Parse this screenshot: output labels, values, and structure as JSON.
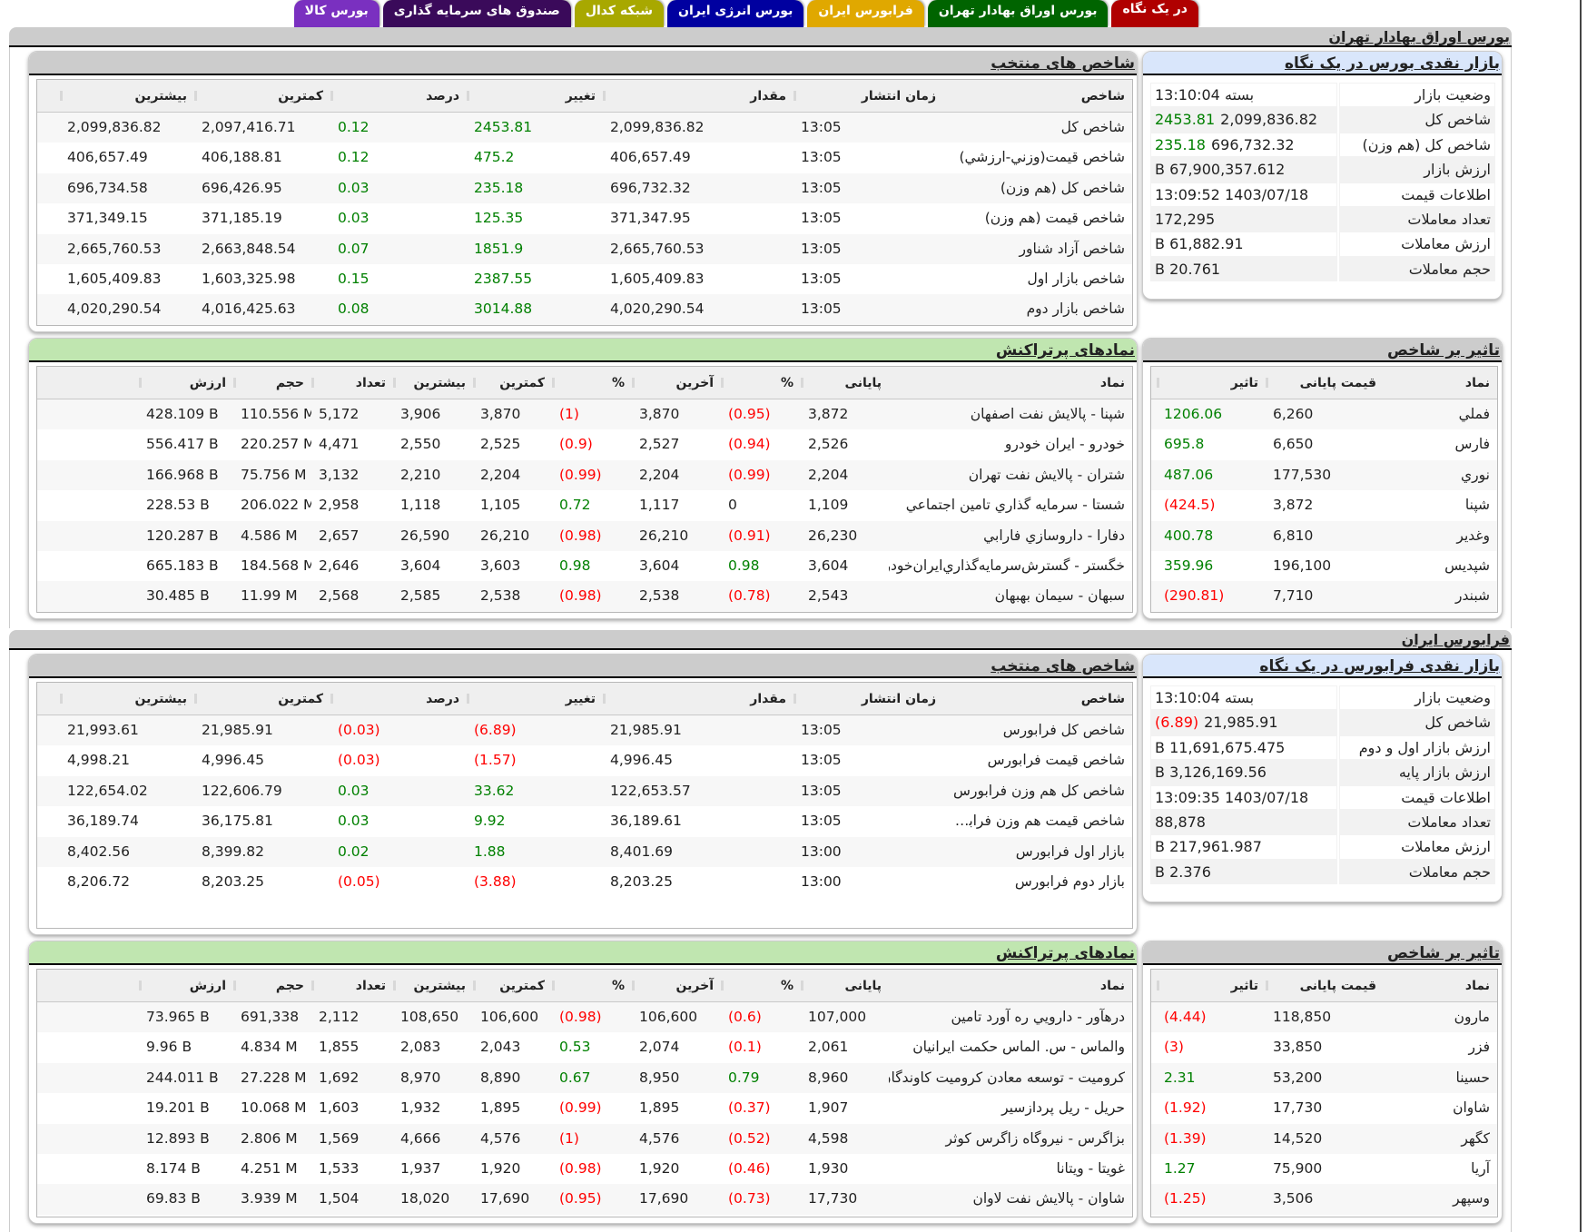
{
  "tabs": [
    {
      "label": "در یک نگاه",
      "color": "#b00000",
      "active": true
    },
    {
      "label": "بورس اوراق بهادار تهران",
      "color": "#006400"
    },
    {
      "label": "فرابورس ایران",
      "color": "#e0a800"
    },
    {
      "label": "بورس انرژی ایران",
      "color": "#0000a0"
    },
    {
      "label": "شبکه کدال",
      "color": "#a8a800"
    },
    {
      "label": "صندوق های سرمایه گذاری",
      "color": "#3a0a5a"
    },
    {
      "label": "بورس کالا",
      "color": "#7a30c0"
    }
  ],
  "colors": {
    "positive": "#008000",
    "negative": "#ff0000",
    "summary_header": "#d9e6fb",
    "active_header": "#c0e6b0",
    "section_bar": "#cccccc"
  },
  "tse": {
    "title": "بورس اوراق بهادار تهران",
    "summary": {
      "title": "بازار نقدی بورس در یک نگاه",
      "rows": [
        {
          "label": "وضعیت بازار",
          "value": "بسته 13:10:04",
          "change": ""
        },
        {
          "label": "شاخص کل",
          "value": "2,099,836.82",
          "change": "2453.81",
          "dir": "pos"
        },
        {
          "label": "شاخص کل (هم وزن)",
          "value": "696,732.32",
          "change": "235.18",
          "dir": "pos"
        },
        {
          "label": "ارزش بازار",
          "value": "67,900,357.612 B",
          "change": ""
        },
        {
          "label": "اطلاعات قیمت",
          "value": "1403/07/18 13:09:52",
          "change": ""
        },
        {
          "label": "تعداد معاملات",
          "value": "172,295",
          "change": ""
        },
        {
          "label": "ارزش معاملات",
          "value": "61,882.91 B",
          "change": ""
        },
        {
          "label": "حجم معاملات",
          "value": "20.761 B",
          "change": ""
        }
      ]
    },
    "indices": {
      "title": "شاخص های منتخب",
      "columns": [
        "شاخص",
        "زمان انتشار",
        "مقدار",
        "تغییر",
        "درصد",
        "کمترین",
        "بیشترین"
      ],
      "rows": [
        [
          "شاخص کل",
          "13:05",
          "2,099,836.82",
          "2453.81",
          "0.12",
          "2,097,416.71",
          "2,099,836.82",
          "pos"
        ],
        [
          "شاخص قيمت(وزني-ارزشي)",
          "13:05",
          "406,657.49",
          "475.2",
          "0.12",
          "406,188.81",
          "406,657.49",
          "pos"
        ],
        [
          "شاخص کل (هم وزن)",
          "13:05",
          "696,732.32",
          "235.18",
          "0.03",
          "696,426.95",
          "696,734.58",
          "pos"
        ],
        [
          "شاخص قیمت (هم وزن)",
          "13:05",
          "371,347.95",
          "125.35",
          "0.03",
          "371,185.19",
          "371,349.15",
          "pos"
        ],
        [
          "شاخص آزاد شناور",
          "13:05",
          "2,665,760.53",
          "1851.9",
          "0.07",
          "2,663,848.54",
          "2,665,760.53",
          "pos"
        ],
        [
          "شاخص بازار اول",
          "13:05",
          "1,605,409.83",
          "2387.55",
          "0.15",
          "1,603,325.98",
          "1,605,409.83",
          "pos"
        ],
        [
          "شاخص بازار دوم",
          "13:05",
          "4,020,290.54",
          "3014.88",
          "0.08",
          "4,016,425.63",
          "4,020,290.54",
          "pos"
        ]
      ]
    },
    "impact": {
      "title": "تاثیر بر شاخص",
      "columns": [
        "نماد",
        "قیمت پایانی",
        "تاثیر"
      ],
      "rows": [
        [
          "فملي",
          "6,260",
          "1206.06",
          "pos"
        ],
        [
          "فارس",
          "6,650",
          "695.8",
          "pos"
        ],
        [
          "نوري",
          "177,530",
          "487.06",
          "pos"
        ],
        [
          "شپنا",
          "3,872",
          "(424.5)",
          "neg"
        ],
        [
          "وغدير",
          "6,810",
          "400.78",
          "pos"
        ],
        [
          "شپديس",
          "196,100",
          "359.96",
          "pos"
        ],
        [
          "شبندر",
          "7,710",
          "(290.81)",
          "neg"
        ]
      ]
    },
    "active": {
      "title": "نمادهای پرتراکنش",
      "columns": [
        "نماد",
        "پایانی",
        "%",
        "آخرین",
        "%",
        "کمترین",
        "بیشترین",
        "تعداد",
        "حجم",
        "ارزش"
      ],
      "rows": [
        {
          "name": "شپنا - پالايش نفت اصفهان",
          "close": "3,872",
          "close_pct": "(0.95)",
          "close_dir": "neg",
          "last": "3,870",
          "last_pct": "(1)",
          "last_dir": "neg",
          "low": "3,870",
          "high": "3,906",
          "count": "5,172",
          "volume": "110.556 M",
          "value": "428.109 B"
        },
        {
          "name": "خودرو - ايران خودرو",
          "close": "2,526",
          "close_pct": "(0.94)",
          "close_dir": "neg",
          "last": "2,527",
          "last_pct": "(0.9)",
          "last_dir": "neg",
          "low": "2,525",
          "high": "2,550",
          "count": "4,471",
          "volume": "220.257 M",
          "value": "556.417 B"
        },
        {
          "name": "شتران - پالايش نفت تهران",
          "close": "2,204",
          "close_pct": "(0.99)",
          "close_dir": "neg",
          "last": "2,204",
          "last_pct": "(0.99)",
          "last_dir": "neg",
          "low": "2,204",
          "high": "2,210",
          "count": "3,132",
          "volume": "75.756 M",
          "value": "166.968 B"
        },
        {
          "name": "شستا - سرمايه گذاري تامين اجتماعي",
          "close": "1,109",
          "close_pct": "0",
          "close_dir": "",
          "last": "1,117",
          "last_pct": "0.72",
          "last_dir": "pos",
          "low": "1,105",
          "high": "1,118",
          "count": "2,958",
          "volume": "206.022 M",
          "value": "228.53 B"
        },
        {
          "name": "دفارا - داروسازي فارابي",
          "close": "26,230",
          "close_pct": "(0.91)",
          "close_dir": "neg",
          "last": "26,210",
          "last_pct": "(0.98)",
          "last_dir": "neg",
          "low": "26,210",
          "high": "26,590",
          "count": "2,657",
          "volume": "4.586 M",
          "value": "120.287 B"
        },
        {
          "name": "خگستر - گسترش‌سرمايه‌گذاري‌ايران‌خودرو",
          "close": "3,604",
          "close_pct": "0.98",
          "close_dir": "pos",
          "last": "3,604",
          "last_pct": "0.98",
          "last_dir": "pos",
          "low": "3,603",
          "high": "3,604",
          "count": "2,646",
          "volume": "184.568 M",
          "value": "665.183 B"
        },
        {
          "name": "سبهان - سيمان بهبهان",
          "close": "2,543",
          "close_pct": "(0.78)",
          "close_dir": "neg",
          "last": "2,538",
          "last_pct": "(0.98)",
          "last_dir": "neg",
          "low": "2,538",
          "high": "2,585",
          "count": "2,568",
          "volume": "11.99 M",
          "value": "30.485 B"
        }
      ]
    }
  },
  "ifb": {
    "title": "فرابورس ایران",
    "summary": {
      "title": "بازار نقدی فرابورس در یک نگاه",
      "rows": [
        {
          "label": "وضعیت بازار",
          "value": "بسته 13:10:04",
          "change": ""
        },
        {
          "label": "شاخص کل",
          "value": "21,985.91",
          "change": "(6.89)",
          "dir": "neg"
        },
        {
          "label": "ارزش بازار اول و دوم",
          "value": "11,691,675.475 B",
          "change": ""
        },
        {
          "label": "ارزش بازار پایه",
          "value": "3,126,169.56 B",
          "change": ""
        },
        {
          "label": "اطلاعات قیمت",
          "value": "1403/07/18 13:09:35",
          "change": ""
        },
        {
          "label": "تعداد معاملات",
          "value": "88,878",
          "change": ""
        },
        {
          "label": "ارزش معاملات",
          "value": "217,961.987 B",
          "change": ""
        },
        {
          "label": "حجم معاملات",
          "value": "2.376 B",
          "change": ""
        }
      ]
    },
    "indices": {
      "title": "شاخص های منتخب",
      "columns": [
        "شاخص",
        "زمان انتشار",
        "مقدار",
        "تغییر",
        "درصد",
        "کمترین",
        "بیشترین"
      ],
      "rows": [
        [
          "شاخص کل فرابورس",
          "13:05",
          "21,985.91",
          "(6.89)",
          "(0.03)",
          "21,985.91",
          "21,993.61",
          "neg"
        ],
        [
          "شاخص قیمت فرابورس",
          "13:05",
          "4,996.45",
          "(1.57)",
          "(0.03)",
          "4,996.45",
          "4,998.21",
          "neg"
        ],
        [
          "شاخص کل هم وزن فرابورس",
          "13:05",
          "122,653.57",
          "33.62",
          "0.03",
          "122,606.79",
          "122,654.02",
          "pos"
        ],
        [
          "شاخص قیمت هم وزن فرابو...",
          "13:05",
          "36,189.61",
          "9.92",
          "0.03",
          "36,175.81",
          "36,189.74",
          "pos"
        ],
        [
          "بازار اول فرابورس",
          "13:00",
          "8,401.69",
          "1.88",
          "0.02",
          "8,399.82",
          "8,402.56",
          "pos"
        ],
        [
          "بازار دوم فرابورس",
          "13:00",
          "8,203.25",
          "(3.88)",
          "(0.05)",
          "8,203.25",
          "8,206.72",
          "neg"
        ]
      ]
    },
    "impact": {
      "title": "تاثیر بر شاخص",
      "columns": [
        "نماد",
        "قیمت پایانی",
        "تاثیر"
      ],
      "rows": [
        [
          "مارون",
          "118,850",
          "(4.44)",
          "neg"
        ],
        [
          "فزر",
          "33,850",
          "(3)",
          "neg"
        ],
        [
          "حسينا",
          "53,200",
          "2.31",
          "pos"
        ],
        [
          "شاوان",
          "17,730",
          "(1.92)",
          "neg"
        ],
        [
          "کگهر",
          "14,520",
          "(1.39)",
          "neg"
        ],
        [
          "آريا",
          "75,900",
          "1.27",
          "pos"
        ],
        [
          "وسپهر",
          "3,506",
          "(1.25)",
          "neg"
        ]
      ]
    },
    "active": {
      "title": "نمادهای پرتراکنش",
      "columns": [
        "نماد",
        "پایانی",
        "%",
        "آخرین",
        "%",
        "کمترین",
        "بیشترین",
        "تعداد",
        "حجم",
        "ارزش"
      ],
      "rows": [
        {
          "name": "درهآور - دارويي ره آورد تامين",
          "close": "107,000",
          "close_pct": "(0.6)",
          "close_dir": "neg",
          "last": "106,600",
          "last_pct": "(0.98)",
          "last_dir": "neg",
          "low": "106,600",
          "high": "108,650",
          "count": "2,112",
          "volume": "691,338",
          "value": "73.965 B"
        },
        {
          "name": "والماس - س. الماس حکمت ايرانيان",
          "close": "2,061",
          "close_pct": "(0.1)",
          "close_dir": "neg",
          "last": "2,074",
          "last_pct": "0.53",
          "last_dir": "pos",
          "low": "2,043",
          "high": "2,083",
          "count": "1,855",
          "volume": "4.834 M",
          "value": "9.96 B"
        },
        {
          "name": "کروميت - توسعه معادن کروميت کاوندگان",
          "close": "8,960",
          "close_pct": "0.79",
          "close_dir": "pos",
          "last": "8,950",
          "last_pct": "0.67",
          "last_dir": "pos",
          "low": "8,890",
          "high": "8,970",
          "count": "1,692",
          "volume": "27.228 M",
          "value": "244.011 B"
        },
        {
          "name": "حريل - ريل پردازسير",
          "close": "1,907",
          "close_pct": "(0.37)",
          "close_dir": "neg",
          "last": "1,895",
          "last_pct": "(0.99)",
          "last_dir": "neg",
          "low": "1,895",
          "high": "1,932",
          "count": "1,603",
          "volume": "10.068 M",
          "value": "19.201 B"
        },
        {
          "name": "بزاگرس - نيروگاه زاگرس کوثر",
          "close": "4,598",
          "close_pct": "(0.52)",
          "close_dir": "neg",
          "last": "4,576",
          "last_pct": "(1)",
          "last_dir": "neg",
          "low": "4,576",
          "high": "4,666",
          "count": "1,569",
          "volume": "2.806 M",
          "value": "12.893 B"
        },
        {
          "name": "غويتا - ويتانا",
          "close": "1,930",
          "close_pct": "(0.46)",
          "close_dir": "neg",
          "last": "1,920",
          "last_pct": "(0.98)",
          "last_dir": "neg",
          "low": "1,920",
          "high": "1,937",
          "count": "1,533",
          "volume": "4.251 M",
          "value": "8.174 B"
        },
        {
          "name": "شاوان - پالايش نفت لاوان",
          "close": "17,730",
          "close_pct": "(0.73)",
          "close_dir": "neg",
          "last": "17,690",
          "last_pct": "(0.95)",
          "last_dir": "neg",
          "low": "17,690",
          "high": "18,020",
          "count": "1,504",
          "volume": "3.939 M",
          "value": "69.83 B"
        }
      ]
    }
  }
}
